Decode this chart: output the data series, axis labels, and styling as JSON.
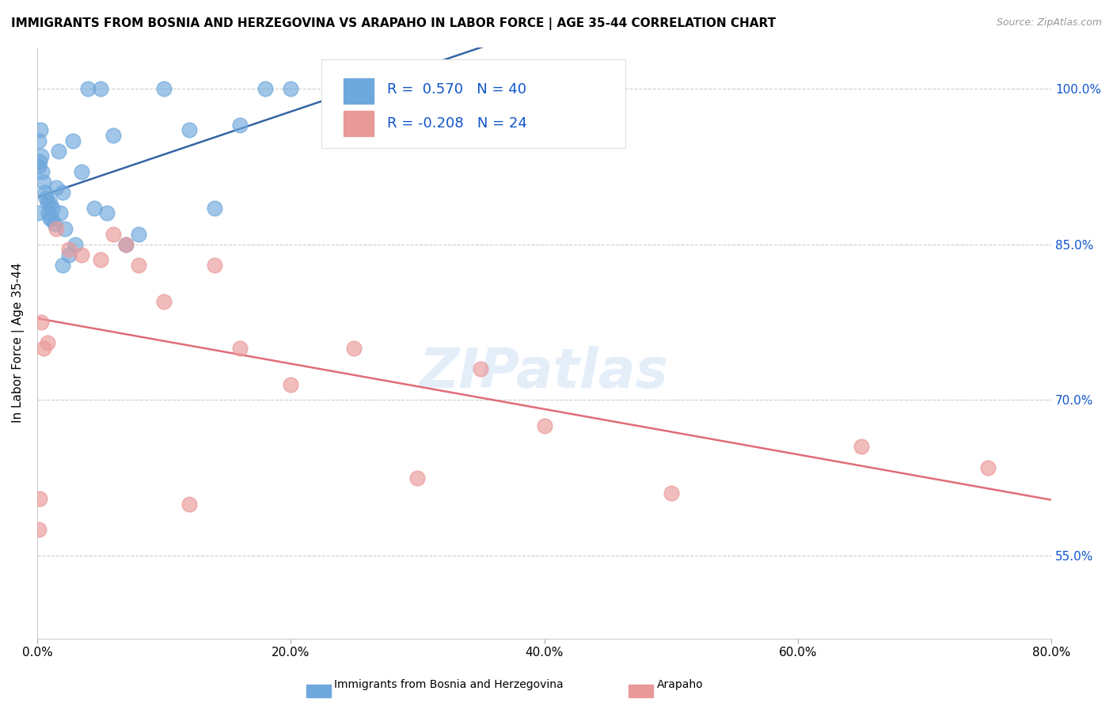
{
  "title": "IMMIGRANTS FROM BOSNIA AND HERZEGOVINA VS ARAPAHO IN LABOR FORCE | AGE 35-44 CORRELATION CHART",
  "source": "Source: ZipAtlas.com",
  "ylabel": "In Labor Force | Age 35-44",
  "x_tick_labels": [
    "0.0%",
    "20.0%",
    "40.0%",
    "60.0%",
    "80.0%"
  ],
  "x_tick_vals": [
    0.0,
    20.0,
    40.0,
    60.0,
    80.0
  ],
  "y_tick_labels_right": [
    "55.0%",
    "70.0%",
    "85.0%",
    "100.0%"
  ],
  "y_tick_vals": [
    55.0,
    70.0,
    85.0,
    100.0
  ],
  "xlim": [
    0.0,
    80.0
  ],
  "ylim": [
    47.0,
    104.0
  ],
  "blue_R": 0.57,
  "blue_N": 40,
  "pink_R": -0.208,
  "pink_N": 24,
  "blue_color": "#6fa8dc",
  "pink_color": "#ea9999",
  "blue_line_color": "#3465a4",
  "pink_line_color": "#e06c7a",
  "legend_color": "#1155cc",
  "watermark": "ZIPatlas",
  "blue_x": [
    0.05,
    0.1,
    0.15,
    0.2,
    0.25,
    0.3,
    0.4,
    0.5,
    0.6,
    0.7,
    0.8,
    0.9,
    1.0,
    1.0,
    1.1,
    1.2,
    1.4,
    1.5,
    1.7,
    1.8,
    2.0,
    2.0,
    2.2,
    2.5,
    2.8,
    3.0,
    3.5,
    4.0,
    4.5,
    5.0,
    5.5,
    6.0,
    7.0,
    8.0,
    10.0,
    12.0,
    14.0,
    16.0,
    18.0,
    20.0
  ],
  "blue_y": [
    88.0,
    92.5,
    95.0,
    93.0,
    96.0,
    93.5,
    92.0,
    91.0,
    90.0,
    89.5,
    89.0,
    88.0,
    87.5,
    89.0,
    87.5,
    88.5,
    87.0,
    90.5,
    94.0,
    88.0,
    83.0,
    90.0,
    86.5,
    84.0,
    95.0,
    85.0,
    92.0,
    100.0,
    88.5,
    100.0,
    88.0,
    95.5,
    85.0,
    86.0,
    100.0,
    96.0,
    88.5,
    96.5,
    100.0,
    100.0
  ],
  "pink_x": [
    0.1,
    0.2,
    0.3,
    0.5,
    0.8,
    1.5,
    2.5,
    3.5,
    5.0,
    6.0,
    7.0,
    8.0,
    10.0,
    12.0,
    14.0,
    16.0,
    20.0,
    25.0,
    30.0,
    35.0,
    40.0,
    50.0,
    65.0,
    75.0
  ],
  "pink_y": [
    57.5,
    60.5,
    77.5,
    75.0,
    75.5,
    86.5,
    84.5,
    84.0,
    83.5,
    86.0,
    85.0,
    83.0,
    79.5,
    60.0,
    83.0,
    75.0,
    71.5,
    75.0,
    62.5,
    73.0,
    67.5,
    61.0,
    65.5,
    63.5
  ]
}
